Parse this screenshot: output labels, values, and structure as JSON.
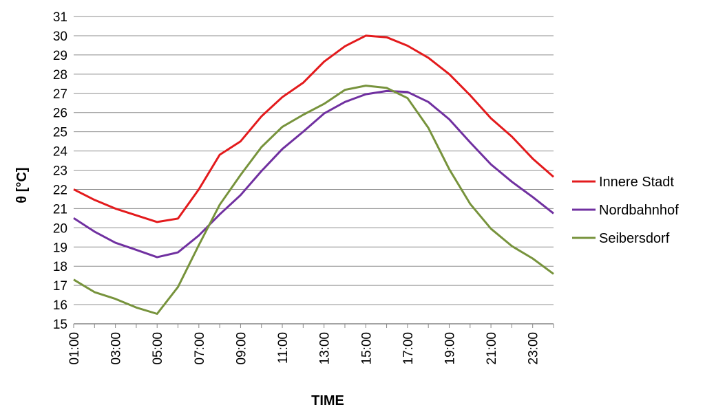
{
  "chart_data": {
    "type": "line",
    "title": "",
    "xlabel": "TIME",
    "ylabel": "θ [°C]",
    "ylim": [
      15,
      31
    ],
    "yticks": [
      "15",
      "16",
      "17",
      "18",
      "19",
      "20",
      "21",
      "22",
      "23",
      "24",
      "25",
      "26",
      "27",
      "28",
      "29",
      "30",
      "31"
    ],
    "x": [
      "01:00",
      "02:00",
      "03:00",
      "04:00",
      "05:00",
      "06:00",
      "07:00",
      "08:00",
      "09:00",
      "10:00",
      "11:00",
      "12:00",
      "13:00",
      "14:00",
      "15:00",
      "16:00",
      "17:00",
      "18:00",
      "19:00",
      "20:00",
      "21:00",
      "22:00",
      "23:00",
      "24:00"
    ],
    "xtick_labels": [
      "01:00",
      "03:00",
      "05:00",
      "07:00",
      "09:00",
      "11:00",
      "13:00",
      "15:00",
      "17:00",
      "19:00",
      "21:00",
      "23:00"
    ],
    "grid": true,
    "legend_position": "right",
    "series": [
      {
        "name": "Innere Stadt",
        "color": "#e31a1c",
        "values": [
          22.0,
          21.45,
          21.0,
          20.65,
          20.3,
          20.48,
          22.0,
          23.8,
          24.5,
          25.8,
          26.8,
          27.55,
          28.65,
          29.45,
          30.0,
          29.92,
          29.48,
          28.85,
          28.0,
          26.9,
          25.7,
          24.75,
          23.6,
          22.65
        ]
      },
      {
        "name": "Nordbahnhof",
        "color": "#7030a0",
        "values": [
          20.5,
          19.8,
          19.22,
          18.85,
          18.47,
          18.72,
          19.6,
          20.7,
          21.7,
          22.95,
          24.1,
          25.0,
          25.95,
          26.55,
          26.95,
          27.12,
          27.07,
          26.55,
          25.65,
          24.45,
          23.3,
          22.4,
          21.6,
          20.75
        ]
      },
      {
        "name": "Seibersdorf",
        "color": "#77933c",
        "values": [
          17.3,
          16.65,
          16.3,
          15.85,
          15.52,
          16.92,
          19.1,
          21.2,
          22.75,
          24.2,
          25.25,
          25.88,
          26.45,
          27.18,
          27.4,
          27.28,
          26.75,
          25.2,
          23.05,
          21.25,
          19.95,
          19.05,
          18.4,
          17.6
        ]
      }
    ]
  }
}
